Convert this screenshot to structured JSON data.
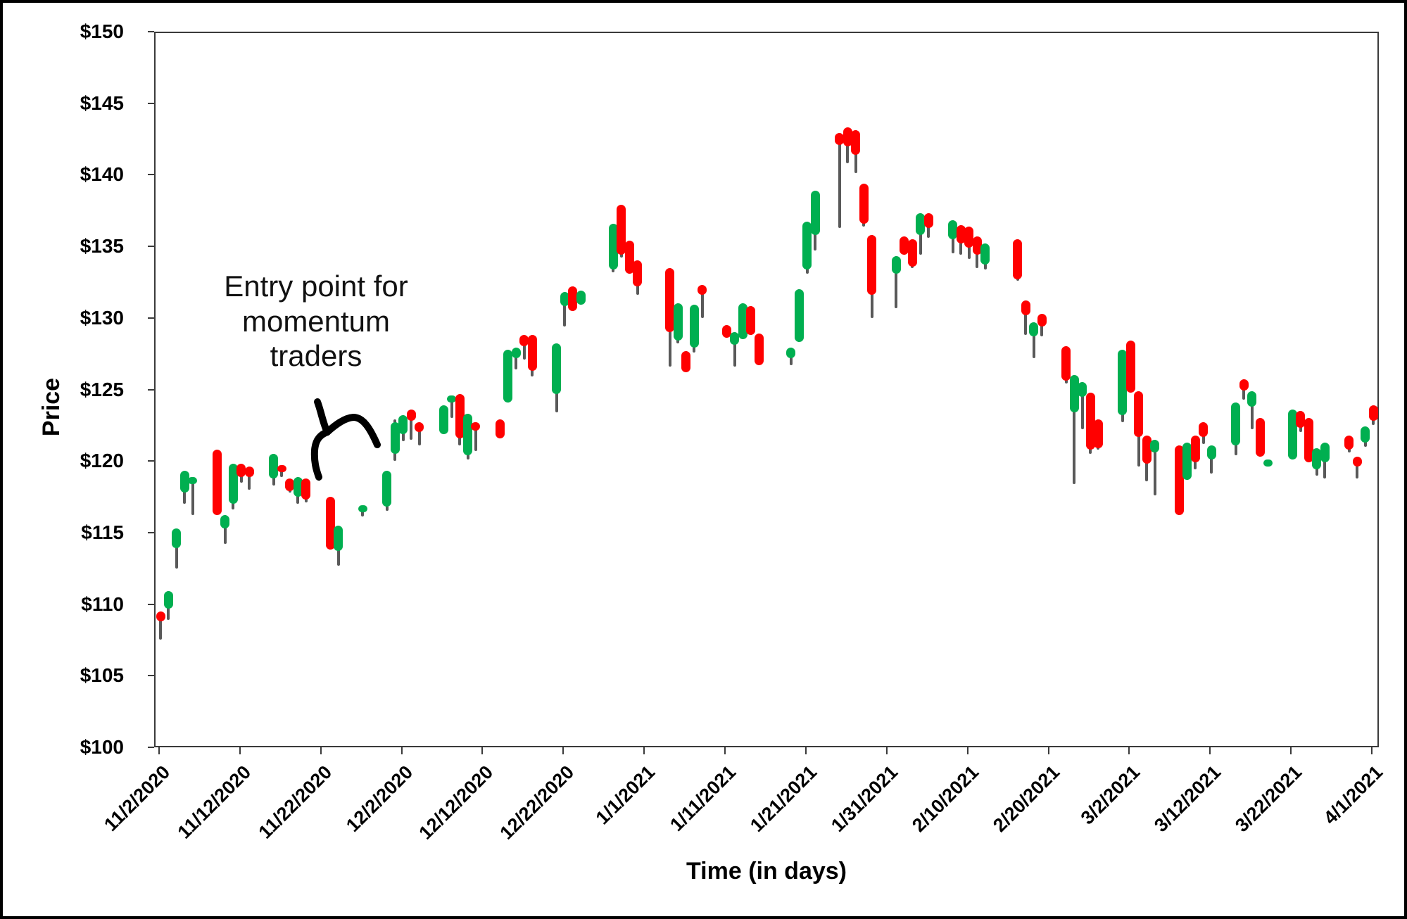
{
  "y_axis": {
    "title": "Price",
    "min": 100,
    "max": 150,
    "step": 5,
    "tick_prefix": "$"
  },
  "x_axis": {
    "title": "Time (in days)",
    "tick_labels": [
      "11/2/2020",
      "11/12/2020",
      "11/22/2020",
      "12/2/2020",
      "12/12/2020",
      "12/22/2020",
      "1/1/2021",
      "1/11/2021",
      "1/21/2021",
      "1/31/2021",
      "2/10/2021",
      "2/20/2021",
      "3/2/2021",
      "3/12/2021",
      "3/22/2021",
      "4/1/2021"
    ]
  },
  "annotation": {
    "lines": [
      "Entry point for",
      "momentum",
      "traders"
    ]
  },
  "colors": {
    "up": "#00AF50",
    "down": "#FF0000",
    "wick": "#595959",
    "axis": "#3a3a3a",
    "frame": "#000000"
  },
  "chart_data": {
    "type": "candlestick",
    "title": "",
    "xlabel": "Time (in days)",
    "ylabel": "Price",
    "ylim": [
      100,
      150
    ],
    "x_range": [
      "11/2/2020",
      "4/1/2021"
    ],
    "grid": false,
    "legend": false,
    "candles": [
      {
        "date": "11/2/2020",
        "o": 109.6,
        "h": 109.6,
        "l": 107.6,
        "c": 108.9
      },
      {
        "date": "11/3/2020",
        "o": 109.8,
        "h": 111.0,
        "l": 109.0,
        "c": 111.0
      },
      {
        "date": "11/4/2020",
        "o": 114.0,
        "h": 115.4,
        "l": 112.6,
        "c": 115.4
      },
      {
        "date": "11/5/2020",
        "o": 117.9,
        "h": 119.4,
        "l": 117.1,
        "c": 119.4
      },
      {
        "date": "11/6/2020",
        "o": 118.5,
        "h": 119.0,
        "l": 116.3,
        "c": 119.0
      },
      {
        "date": "11/9/2020",
        "o": 120.9,
        "h": 120.9,
        "l": 116.3,
        "c": 116.3
      },
      {
        "date": "11/10/2020",
        "o": 115.4,
        "h": 116.3,
        "l": 114.3,
        "c": 116.3
      },
      {
        "date": "11/11/2020",
        "o": 117.1,
        "h": 119.9,
        "l": 116.7,
        "c": 119.9
      },
      {
        "date": "11/12/2020",
        "o": 119.9,
        "h": 119.9,
        "l": 118.6,
        "c": 119.0
      },
      {
        "date": "11/13/2020",
        "o": 119.7,
        "h": 119.7,
        "l": 118.1,
        "c": 119.0
      },
      {
        "date": "11/16/2020",
        "o": 118.9,
        "h": 120.6,
        "l": 118.4,
        "c": 120.6
      },
      {
        "date": "11/17/2020",
        "o": 119.8,
        "h": 119.8,
        "l": 119.0,
        "c": 119.3
      },
      {
        "date": "11/18/2020",
        "o": 118.9,
        "h": 118.9,
        "l": 117.9,
        "c": 118.0
      },
      {
        "date": "11/19/2020",
        "o": 117.6,
        "h": 119.0,
        "l": 117.1,
        "c": 119.0
      },
      {
        "date": "11/20/2020",
        "o": 118.9,
        "h": 118.9,
        "l": 117.2,
        "c": 117.4
      },
      {
        "date": "11/23/2020",
        "o": 117.6,
        "h": 117.6,
        "l": 113.9,
        "c": 113.9
      },
      {
        "date": "11/24/2020",
        "o": 113.8,
        "h": 115.6,
        "l": 112.8,
        "c": 115.6
      },
      {
        "date": "11/27/2020",
        "o": 116.5,
        "h": 117.0,
        "l": 116.2,
        "c": 117.0
      },
      {
        "date": "11/30/2020",
        "o": 116.9,
        "h": 119.4,
        "l": 116.6,
        "c": 119.4
      },
      {
        "date": "12/1/2020",
        "o": 120.6,
        "h": 123.0,
        "l": 120.1,
        "c": 122.8
      },
      {
        "date": "12/2/2020",
        "o": 122.0,
        "h": 123.3,
        "l": 121.5,
        "c": 123.3
      },
      {
        "date": "12/3/2020",
        "o": 123.7,
        "h": 123.7,
        "l": 121.6,
        "c": 122.9
      },
      {
        "date": "12/4/2020",
        "o": 122.8,
        "h": 122.8,
        "l": 121.2,
        "c": 122.1
      },
      {
        "date": "12/7/2020",
        "o": 122.0,
        "h": 124.0,
        "l": 122.0,
        "c": 124.0
      },
      {
        "date": "12/8/2020",
        "o": 124.2,
        "h": 124.7,
        "l": 123.1,
        "c": 124.7
      },
      {
        "date": "12/9/2020",
        "o": 124.8,
        "h": 124.8,
        "l": 121.2,
        "c": 121.7
      },
      {
        "date": "12/10/2020",
        "o": 120.5,
        "h": 123.4,
        "l": 120.2,
        "c": 123.4
      },
      {
        "date": "12/11/2020",
        "o": 122.8,
        "h": 122.8,
        "l": 120.8,
        "c": 122.2
      },
      {
        "date": "12/14/2020",
        "o": 123.0,
        "h": 123.0,
        "l": 121.7,
        "c": 121.7
      },
      {
        "date": "12/15/2020",
        "o": 124.2,
        "h": 127.9,
        "l": 124.2,
        "c": 127.9
      },
      {
        "date": "12/16/2020",
        "o": 127.3,
        "h": 128.0,
        "l": 126.5,
        "c": 128.0
      },
      {
        "date": "12/17/2020",
        "o": 128.9,
        "h": 128.9,
        "l": 127.2,
        "c": 128.1
      },
      {
        "date": "12/18/2020",
        "o": 128.9,
        "h": 128.9,
        "l": 126.0,
        "c": 126.4
      },
      {
        "date": "12/21/2020",
        "o": 124.8,
        "h": 128.3,
        "l": 123.5,
        "c": 128.3
      },
      {
        "date": "12/22/2020",
        "o": 130.9,
        "h": 131.9,
        "l": 129.5,
        "c": 131.9
      },
      {
        "date": "12/23/2020",
        "o": 132.3,
        "h": 132.3,
        "l": 130.6,
        "c": 130.6
      },
      {
        "date": "12/24/2020",
        "o": 131.0,
        "h": 132.0,
        "l": 131.0,
        "c": 132.0
      },
      {
        "date": "12/28/2020",
        "o": 133.5,
        "h": 136.7,
        "l": 133.3,
        "c": 136.7
      },
      {
        "date": "12/29/2020",
        "o": 138.0,
        "h": 138.0,
        "l": 134.3,
        "c": 134.5
      },
      {
        "date": "12/30/2020",
        "o": 135.5,
        "h": 135.5,
        "l": 133.2,
        "c": 133.2
      },
      {
        "date": "12/31/2020",
        "o": 134.1,
        "h": 134.1,
        "l": 131.7,
        "c": 132.3
      },
      {
        "date": "1/4/2021",
        "o": 133.6,
        "h": 133.6,
        "l": 126.7,
        "c": 129.1
      },
      {
        "date": "1/5/2021",
        "o": 128.5,
        "h": 131.1,
        "l": 128.3,
        "c": 131.1
      },
      {
        "date": "1/6/2021",
        "o": 127.8,
        "h": 127.8,
        "l": 126.3,
        "c": 126.3
      },
      {
        "date": "1/7/2021",
        "o": 128.0,
        "h": 131.0,
        "l": 127.7,
        "c": 131.0
      },
      {
        "date": "1/8/2021",
        "o": 132.4,
        "h": 132.4,
        "l": 130.1,
        "c": 131.7
      },
      {
        "date": "1/11/2021",
        "o": 129.6,
        "h": 129.6,
        "l": 128.7,
        "c": 128.7
      },
      {
        "date": "1/12/2021",
        "o": 128.2,
        "h": 129.1,
        "l": 126.7,
        "c": 129.1
      },
      {
        "date": "1/13/2021",
        "o": 128.6,
        "h": 131.1,
        "l": 128.6,
        "c": 131.1
      },
      {
        "date": "1/14/2021",
        "o": 130.9,
        "h": 130.9,
        "l": 128.9,
        "c": 128.9
      },
      {
        "date": "1/15/2021",
        "o": 129.0,
        "h": 129.0,
        "l": 126.8,
        "c": 126.8
      },
      {
        "date": "1/19/2021",
        "o": 127.3,
        "h": 128.0,
        "l": 126.8,
        "c": 128.0
      },
      {
        "date": "1/20/2021",
        "o": 128.4,
        "h": 132.1,
        "l": 128.4,
        "c": 132.1
      },
      {
        "date": "1/21/2021",
        "o": 133.5,
        "h": 136.8,
        "l": 133.2,
        "c": 136.8
      },
      {
        "date": "1/22/2021",
        "o": 135.9,
        "h": 139.0,
        "l": 134.8,
        "c": 139.0
      },
      {
        "date": "1/25/2021",
        "o": 143.0,
        "h": 143.0,
        "l": 136.4,
        "c": 142.2
      },
      {
        "date": "1/26/2021",
        "o": 143.4,
        "h": 143.4,
        "l": 140.9,
        "c": 142.1
      },
      {
        "date": "1/27/2021",
        "o": 143.2,
        "h": 143.2,
        "l": 140.2,
        "c": 141.5
      },
      {
        "date": "1/28/2021",
        "o": 139.5,
        "h": 139.5,
        "l": 136.5,
        "c": 136.7
      },
      {
        "date": "1/29/2021",
        "o": 135.9,
        "h": 135.9,
        "l": 130.1,
        "c": 131.7
      },
      {
        "date": "2/1/2021",
        "o": 133.2,
        "h": 134.4,
        "l": 130.8,
        "c": 134.4
      },
      {
        "date": "2/2/2021",
        "o": 135.8,
        "h": 135.8,
        "l": 134.5,
        "c": 134.5
      },
      {
        "date": "2/3/2021",
        "o": 135.6,
        "h": 135.6,
        "l": 133.6,
        "c": 133.7
      },
      {
        "date": "2/4/2021",
        "o": 135.9,
        "h": 137.4,
        "l": 134.5,
        "c": 137.4
      },
      {
        "date": "2/5/2021",
        "o": 137.4,
        "h": 137.4,
        "l": 135.7,
        "c": 136.4
      },
      {
        "date": "2/8/2021",
        "o": 135.6,
        "h": 136.9,
        "l": 134.6,
        "c": 136.9
      },
      {
        "date": "2/9/2021",
        "o": 136.6,
        "h": 136.6,
        "l": 134.5,
        "c": 135.3
      },
      {
        "date": "2/10/2021",
        "o": 136.5,
        "h": 136.5,
        "l": 134.2,
        "c": 135.0
      },
      {
        "date": "2/11/2021",
        "o": 135.8,
        "h": 135.8,
        "l": 133.6,
        "c": 134.5
      },
      {
        "date": "2/12/2021",
        "o": 133.8,
        "h": 135.3,
        "l": 133.5,
        "c": 135.3
      },
      {
        "date": "2/16/2021",
        "o": 135.6,
        "h": 135.6,
        "l": 132.7,
        "c": 132.8
      },
      {
        "date": "2/17/2021",
        "o": 131.3,
        "h": 131.3,
        "l": 128.9,
        "c": 130.3
      },
      {
        "date": "2/18/2021",
        "o": 128.8,
        "h": 129.8,
        "l": 127.3,
        "c": 129.8
      },
      {
        "date": "2/19/2021",
        "o": 130.4,
        "h": 130.4,
        "l": 128.8,
        "c": 129.5
      },
      {
        "date": "2/22/2021",
        "o": 128.1,
        "h": 128.1,
        "l": 125.5,
        "c": 125.7
      },
      {
        "date": "2/23/2021",
        "o": 123.5,
        "h": 126.1,
        "l": 118.5,
        "c": 126.1
      },
      {
        "date": "2/24/2021",
        "o": 124.6,
        "h": 125.6,
        "l": 122.3,
        "c": 125.6
      },
      {
        "date": "2/25/2021",
        "o": 124.9,
        "h": 124.9,
        "l": 120.6,
        "c": 120.9
      },
      {
        "date": "2/26/2021",
        "o": 123.0,
        "h": 123.0,
        "l": 120.9,
        "c": 121.0
      },
      {
        "date": "3/1/2021",
        "o": 123.3,
        "h": 127.9,
        "l": 122.8,
        "c": 127.9
      },
      {
        "date": "3/2/2021",
        "o": 128.5,
        "h": 128.5,
        "l": 124.9,
        "c": 124.9
      },
      {
        "date": "3/3/2021",
        "o": 125.0,
        "h": 125.0,
        "l": 119.7,
        "c": 121.8
      },
      {
        "date": "3/4/2021",
        "o": 121.9,
        "h": 121.9,
        "l": 118.7,
        "c": 119.9
      },
      {
        "date": "3/5/2021",
        "o": 120.7,
        "h": 121.6,
        "l": 117.7,
        "c": 121.6
      },
      {
        "date": "3/8/2021",
        "o": 121.2,
        "h": 121.2,
        "l": 116.3,
        "c": 116.3
      },
      {
        "date": "3/9/2021",
        "o": 118.8,
        "h": 121.4,
        "l": 118.8,
        "c": 121.4
      },
      {
        "date": "3/10/2021",
        "o": 121.9,
        "h": 121.9,
        "l": 119.5,
        "c": 120.0
      },
      {
        "date": "3/11/2021",
        "o": 122.8,
        "h": 122.8,
        "l": 121.3,
        "c": 121.8
      },
      {
        "date": "3/12/2021",
        "o": 120.2,
        "h": 121.2,
        "l": 119.2,
        "c": 121.2
      },
      {
        "date": "3/15/2021",
        "o": 121.2,
        "h": 124.2,
        "l": 120.5,
        "c": 124.2
      },
      {
        "date": "3/16/2021",
        "o": 125.8,
        "h": 125.8,
        "l": 124.4,
        "c": 125.0
      },
      {
        "date": "3/17/2021",
        "o": 123.9,
        "h": 125.0,
        "l": 122.3,
        "c": 125.0
      },
      {
        "date": "3/18/2021",
        "o": 123.1,
        "h": 123.1,
        "l": 120.4,
        "c": 120.4
      },
      {
        "date": "3/19/2021",
        "o": 119.7,
        "h": 120.2,
        "l": 119.7,
        "c": 120.2
      },
      {
        "date": "3/22/2021",
        "o": 120.2,
        "h": 123.7,
        "l": 120.2,
        "c": 123.7
      },
      {
        "date": "3/23/2021",
        "o": 123.6,
        "h": 123.6,
        "l": 122.1,
        "c": 122.4
      },
      {
        "date": "3/24/2021",
        "o": 123.1,
        "h": 123.1,
        "l": 120.0,
        "c": 120.0
      },
      {
        "date": "3/25/2021",
        "o": 119.5,
        "h": 121.0,
        "l": 119.1,
        "c": 121.0
      },
      {
        "date": "3/26/2021",
        "o": 120.0,
        "h": 121.4,
        "l": 118.9,
        "c": 121.4
      },
      {
        "date": "3/29/2021",
        "o": 121.9,
        "h": 121.9,
        "l": 120.7,
        "c": 120.9
      },
      {
        "date": "3/30/2021",
        "o": 120.4,
        "h": 120.4,
        "l": 118.9,
        "c": 119.7
      },
      {
        "date": "3/31/2021",
        "o": 121.4,
        "h": 122.5,
        "l": 121.1,
        "c": 122.5
      },
      {
        "date": "4/1/2021",
        "o": 124.0,
        "h": 124.0,
        "l": 122.6,
        "c": 122.9
      }
    ]
  }
}
